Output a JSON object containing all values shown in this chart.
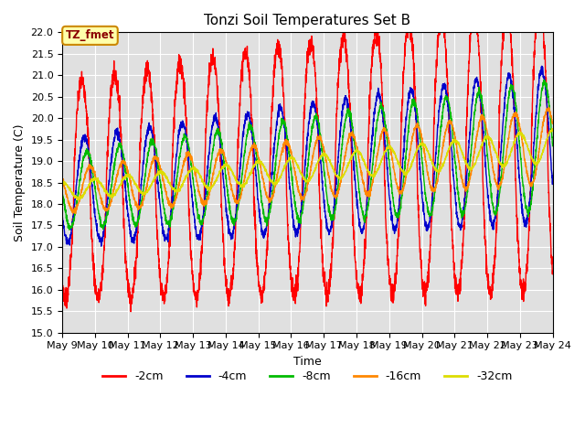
{
  "title": "Tonzi Soil Temperatures Set B",
  "xlabel": "Time",
  "ylabel": "Soil Temperature (C)",
  "ylim": [
    15.0,
    22.0
  ],
  "yticks": [
    15.0,
    15.5,
    16.0,
    16.5,
    17.0,
    17.5,
    18.0,
    18.5,
    19.0,
    19.5,
    20.0,
    20.5,
    21.0,
    21.5,
    22.0
  ],
  "xtick_labels": [
    "May 9",
    "May 10",
    "May 11",
    "May 12",
    "May 13",
    "May 14",
    "May 15",
    "May 16",
    "May 17",
    "May 18",
    "May 19",
    "May 20",
    "May 21",
    "May 22",
    "May 23",
    "May 24"
  ],
  "legend_labels": [
    "-2cm",
    "-4cm",
    "-8cm",
    "-16cm",
    "-32cm"
  ],
  "line_colors": [
    "#ff0000",
    "#0000cc",
    "#00bb00",
    "#ff8800",
    "#dddd00"
  ],
  "annotation_text": "TZ_fmet",
  "annotation_bg": "#ffffaa",
  "annotation_border": "#cc8800",
  "background_color": "#e0e0e0",
  "grid_color": "#ffffff",
  "n_points": 3000,
  "start_day": 9,
  "end_day": 24,
  "base_temp": 18.3,
  "trend_slope": 0.07,
  "period_days": 1.0
}
